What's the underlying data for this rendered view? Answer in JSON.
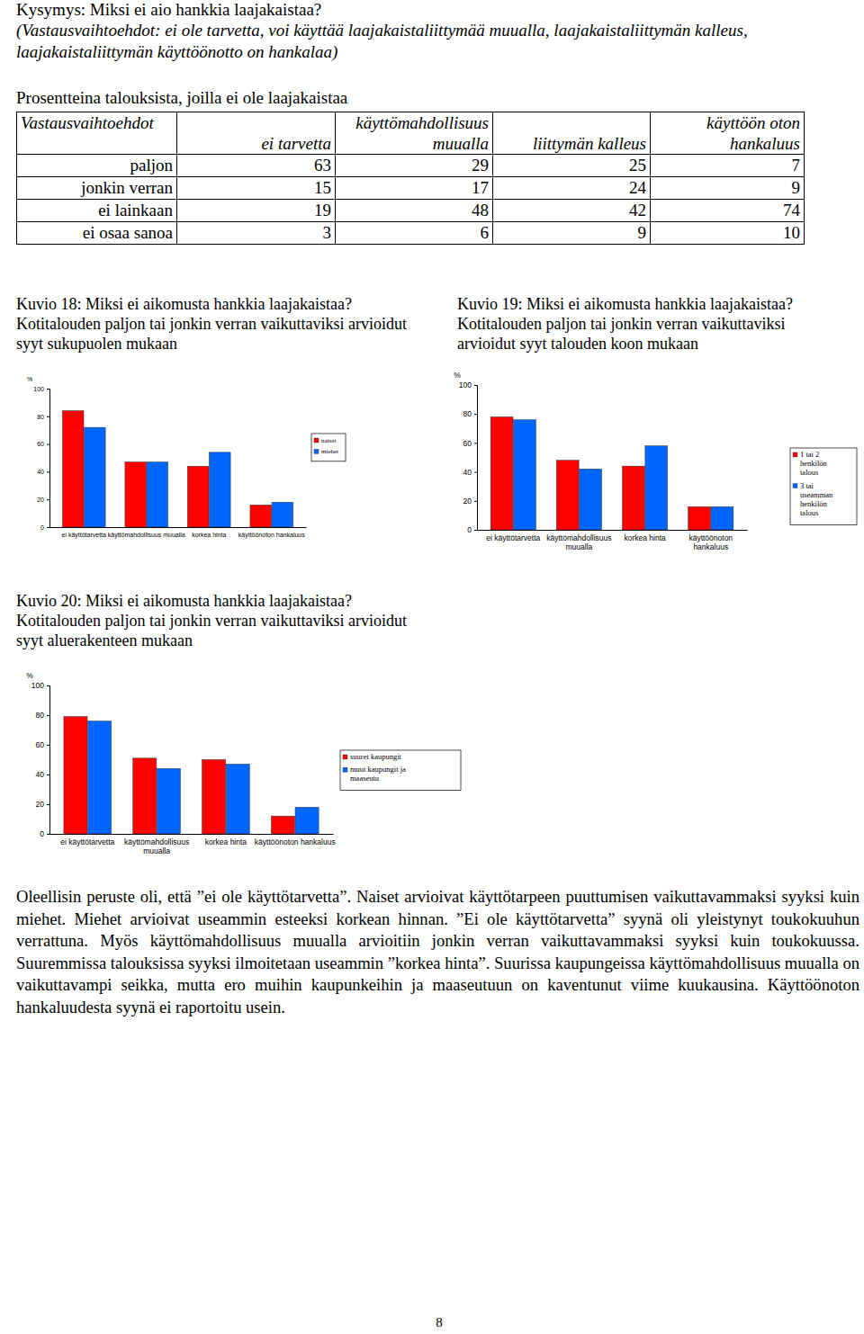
{
  "header": {
    "question": "Kysymys: Miksi ei aio hankkia laajakaistaa?",
    "options": "(Vastausvaihtoehdot: ei ole tarvetta, voi käyttää laajakaistaliittymää muualla, laajakaistaliittymän kalleus, laajakaistaliittymän käyttöönotto on hankalaa)",
    "unit_note": "Prosentteina talouksista, joilla ei ole laajakaistaa"
  },
  "table": {
    "columns": [
      "Vastausvaihtoehdot",
      "ei tarvetta",
      "käyttömahdollisuus muualla",
      "liittymän kalleus",
      "käyttöön oton hankaluus"
    ],
    "rows": [
      [
        "paljon",
        63,
        29,
        25,
        7
      ],
      [
        "jonkin verran",
        15,
        17,
        24,
        9
      ],
      [
        "ei lainkaan",
        19,
        48,
        42,
        74
      ],
      [
        "ei osaa sanoa",
        3,
        6,
        9,
        10
      ]
    ]
  },
  "chart_data": [
    {
      "type": "bar",
      "title": "Kuvio 18: Miksi ei aikomusta hankkia laajakaistaa?",
      "subtitle": "Kotitalouden paljon tai jonkin verran vaikuttaviksi arvioidut syyt sukupuolen mukaan",
      "y_label": "%",
      "categories": [
        "ei käyttötarvetta",
        "käyttömahdollisuus muualla",
        "korkea hinta",
        "käyttöönoton hankaluus"
      ],
      "series": [
        {
          "name": "naiset",
          "color": "#ff0000",
          "values": [
            84,
            47,
            44,
            16
          ]
        },
        {
          "name": "miehet",
          "color": "#0066ff",
          "values": [
            72,
            47,
            54,
            18
          ]
        }
      ],
      "ylim": [
        0,
        100
      ],
      "yticks": [
        0,
        20,
        40,
        60,
        80,
        100
      ],
      "legend": "right"
    },
    {
      "type": "bar",
      "title": "Kuvio 19: Miksi ei aikomusta hankkia laajakaistaa?",
      "subtitle": "Kotitalouden paljon tai jonkin verran vaikuttaviksi arvioidut syyt talouden koon mukaan",
      "y_label": "%",
      "categories": [
        "ei käyttötarvetta",
        "käyttömahdollisuus muualla",
        "korkea hinta",
        "käyttöönoton hankaluus"
      ],
      "series": [
        {
          "name": "1 tai 2 henkilön talous",
          "color": "#ff0000",
          "values": [
            78,
            48,
            44,
            16
          ]
        },
        {
          "name": "3 tai useamman henkilön talous",
          "color": "#0066ff",
          "values": [
            76,
            42,
            58,
            16
          ]
        }
      ],
      "ylim": [
        0,
        100
      ],
      "yticks": [
        0,
        20,
        40,
        60,
        80,
        100
      ],
      "legend": "right"
    },
    {
      "type": "bar",
      "title": "Kuvio 20: Miksi ei aikomusta hankkia laajakaistaa?",
      "subtitle": "Kotitalouden paljon tai jonkin verran vaikuttaviksi arvioidut syyt aluerakenteen mukaan",
      "y_label": "%",
      "categories": [
        "ei käyttötarvetta",
        "käyttömahdollisuus muualla",
        "korkea hinta",
        "käyttöönoton hankaluus"
      ],
      "series": [
        {
          "name": "suuret kaupungit",
          "color": "#ff0000",
          "values": [
            79,
            51,
            50,
            12
          ]
        },
        {
          "name": "muut kaupungit ja maaseutu",
          "color": "#0066ff",
          "values": [
            76,
            44,
            47,
            18
          ]
        }
      ],
      "ylim": [
        0,
        100
      ],
      "yticks": [
        0,
        20,
        40,
        60,
        80,
        100
      ],
      "legend": "right"
    }
  ],
  "body": {
    "text": "Oleellisin peruste oli, että ”ei ole käyttötarvetta”. Naiset arvioivat käyttötarpeen puuttumisen vaikuttavammaksi syyksi kuin miehet. Miehet arvioivat useammin esteeksi korkean hinnan. ”Ei ole käyttötarvetta” syynä oli yleistynyt toukokuuhun verrattuna. Myös käyttömahdollisuus muualla arvioitiin jonkin verran vaikuttavammaksi syyksi kuin toukokuussa. Suuremmissa talouksissa syyksi ilmoitetaan useammin ”korkea hinta”. Suurissa kaupungeissa käyttömahdollisuus muualla on vaikuttavampi seikka, mutta ero muihin kaupunkeihin ja maaseutuun on kaventunut viime kuukausina. Käyttöönoton hankaluudesta syynä ei raportoitu usein."
  },
  "page_number": 8
}
